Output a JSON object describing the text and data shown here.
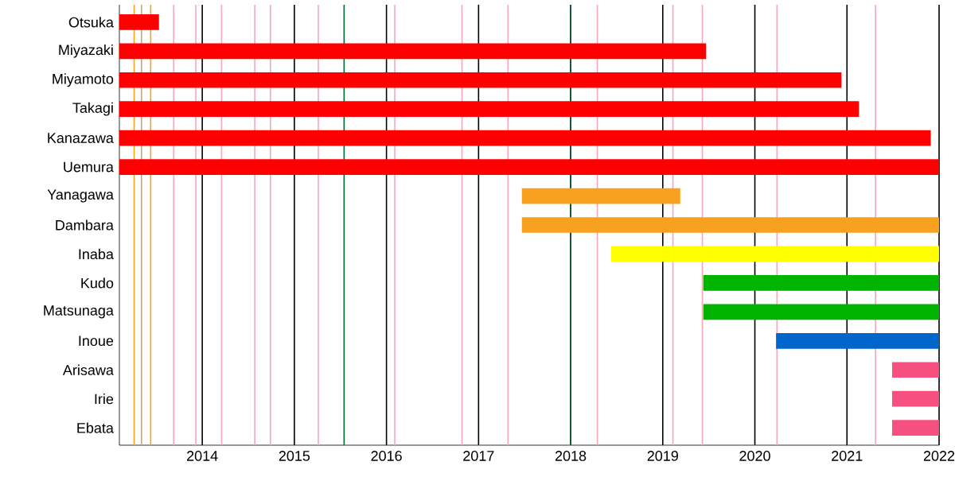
{
  "chart_data": {
    "type": "bar",
    "orientation": "horizontal",
    "categories": [
      "Otsuka",
      "Miyazaki",
      "Miyamoto",
      "Takagi",
      "Kanazawa",
      "Uemura",
      "Yanagawa",
      "Dambara",
      "Inaba",
      "Kudo",
      "Matsunaga",
      "Inoue",
      "Arisawa",
      "Irie",
      "Ebata"
    ],
    "base": [
      2013.1,
      2013.1,
      2013.1,
      2013.1,
      2013.1,
      2013.1,
      2017.47,
      2017.47,
      2018.44,
      2019.44,
      2019.44,
      2020.23,
      2021.49,
      2021.49,
      2021.49
    ],
    "values": [
      0.43,
      6.37,
      7.84,
      8.03,
      8.81,
      8.9,
      1.72,
      4.53,
      3.56,
      2.56,
      2.56,
      1.77,
      0.51,
      0.51,
      0.51
    ],
    "colors": [
      "#ff0000",
      "#ff0000",
      "#ff0000",
      "#ff0000",
      "#ff0000",
      "#ff0000",
      "#f8a020",
      "#f8a020",
      "#ffff00",
      "#00b400",
      "#00b400",
      "#0066cc",
      "#f55080",
      "#f55080",
      "#f55080"
    ],
    "xlim": [
      2013.1,
      2022
    ],
    "xticks": [
      2014,
      2015,
      2016,
      2017,
      2018,
      2019,
      2020,
      2021,
      2022
    ],
    "grid": "x",
    "ref_lines": [
      {
        "axis": "x",
        "value": 2013.26,
        "color": "#f8a020"
      },
      {
        "axis": "x",
        "value": 2013.34,
        "color": "#c8a870"
      },
      {
        "axis": "x",
        "value": 2013.44,
        "color": "#f8a020"
      },
      {
        "axis": "x",
        "value": 2013.69,
        "color": "#f4a8b8"
      },
      {
        "axis": "x",
        "value": 2013.93,
        "color": "#f4a8b8"
      },
      {
        "axis": "x",
        "value": 2014.21,
        "color": "#f4a8b8"
      },
      {
        "axis": "x",
        "value": 2014.57,
        "color": "#f4a8b8"
      },
      {
        "axis": "x",
        "value": 2014.74,
        "color": "#f4a8b8"
      },
      {
        "axis": "x",
        "value": 2015.26,
        "color": "#f4a8b8"
      },
      {
        "axis": "x",
        "value": 2015.54,
        "color": "#006633"
      },
      {
        "axis": "x",
        "value": 2016.09,
        "color": "#f4a8b8"
      },
      {
        "axis": "x",
        "value": 2016.82,
        "color": "#f4a8b8"
      },
      {
        "axis": "x",
        "value": 2017.32,
        "color": "#f4a8b8"
      },
      {
        "axis": "x",
        "value": 2018.0,
        "color": "#006633"
      },
      {
        "axis": "x",
        "value": 2018.29,
        "color": "#f4a8b8"
      },
      {
        "axis": "x",
        "value": 2019.11,
        "color": "#f4a8b8"
      },
      {
        "axis": "x",
        "value": 2019.43,
        "color": "#f4a8b8"
      },
      {
        "axis": "x",
        "value": 2020.24,
        "color": "#f4a8b8"
      },
      {
        "axis": "x",
        "value": 2021.31,
        "color": "#f4a8b8"
      }
    ]
  }
}
